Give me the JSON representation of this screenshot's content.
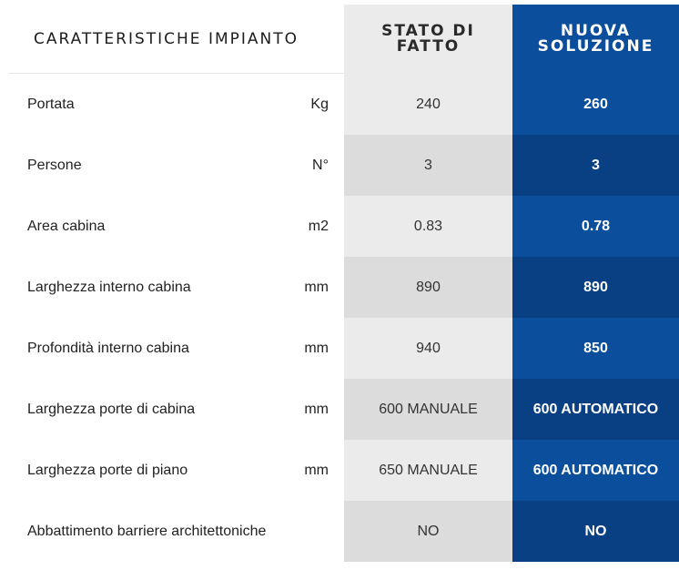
{
  "header": {
    "label": "CARATTERISTICHE IMPIANTO",
    "old": "STATO DI\nFATTO",
    "new": "NUOVA\nSOLUZIONE"
  },
  "rows": [
    {
      "name": "Portata",
      "unit": "Kg",
      "old": "240",
      "new": "260"
    },
    {
      "name": "Persone",
      "unit": "N°",
      "old": "3",
      "new": "3"
    },
    {
      "name": "Area cabina",
      "unit": "m2",
      "old": "0.83",
      "new": "0.78"
    },
    {
      "name": "Larghezza interno cabina",
      "unit": "mm",
      "old": "890",
      "new": "890"
    },
    {
      "name": "Profondità interno cabina",
      "unit": "mm",
      "old": "940",
      "new": "850"
    },
    {
      "name": "Larghezza porte di cabina",
      "unit": "mm",
      "old": "600 MANUALE",
      "new": "600 AUTOMATICO"
    },
    {
      "name": "Larghezza porte di piano",
      "unit": "mm",
      "old": "650 MANUALE",
      "new": "600 AUTOMATICO"
    },
    {
      "name": "Abbattimento barriere architettoniche",
      "unit": "",
      "old": "NO",
      "new": "NO"
    }
  ],
  "colors": {
    "old_light": "#ebebeb",
    "old_dark": "#dcdcdc",
    "new_light": "#0b4e9c",
    "new_dark": "#093f83"
  }
}
